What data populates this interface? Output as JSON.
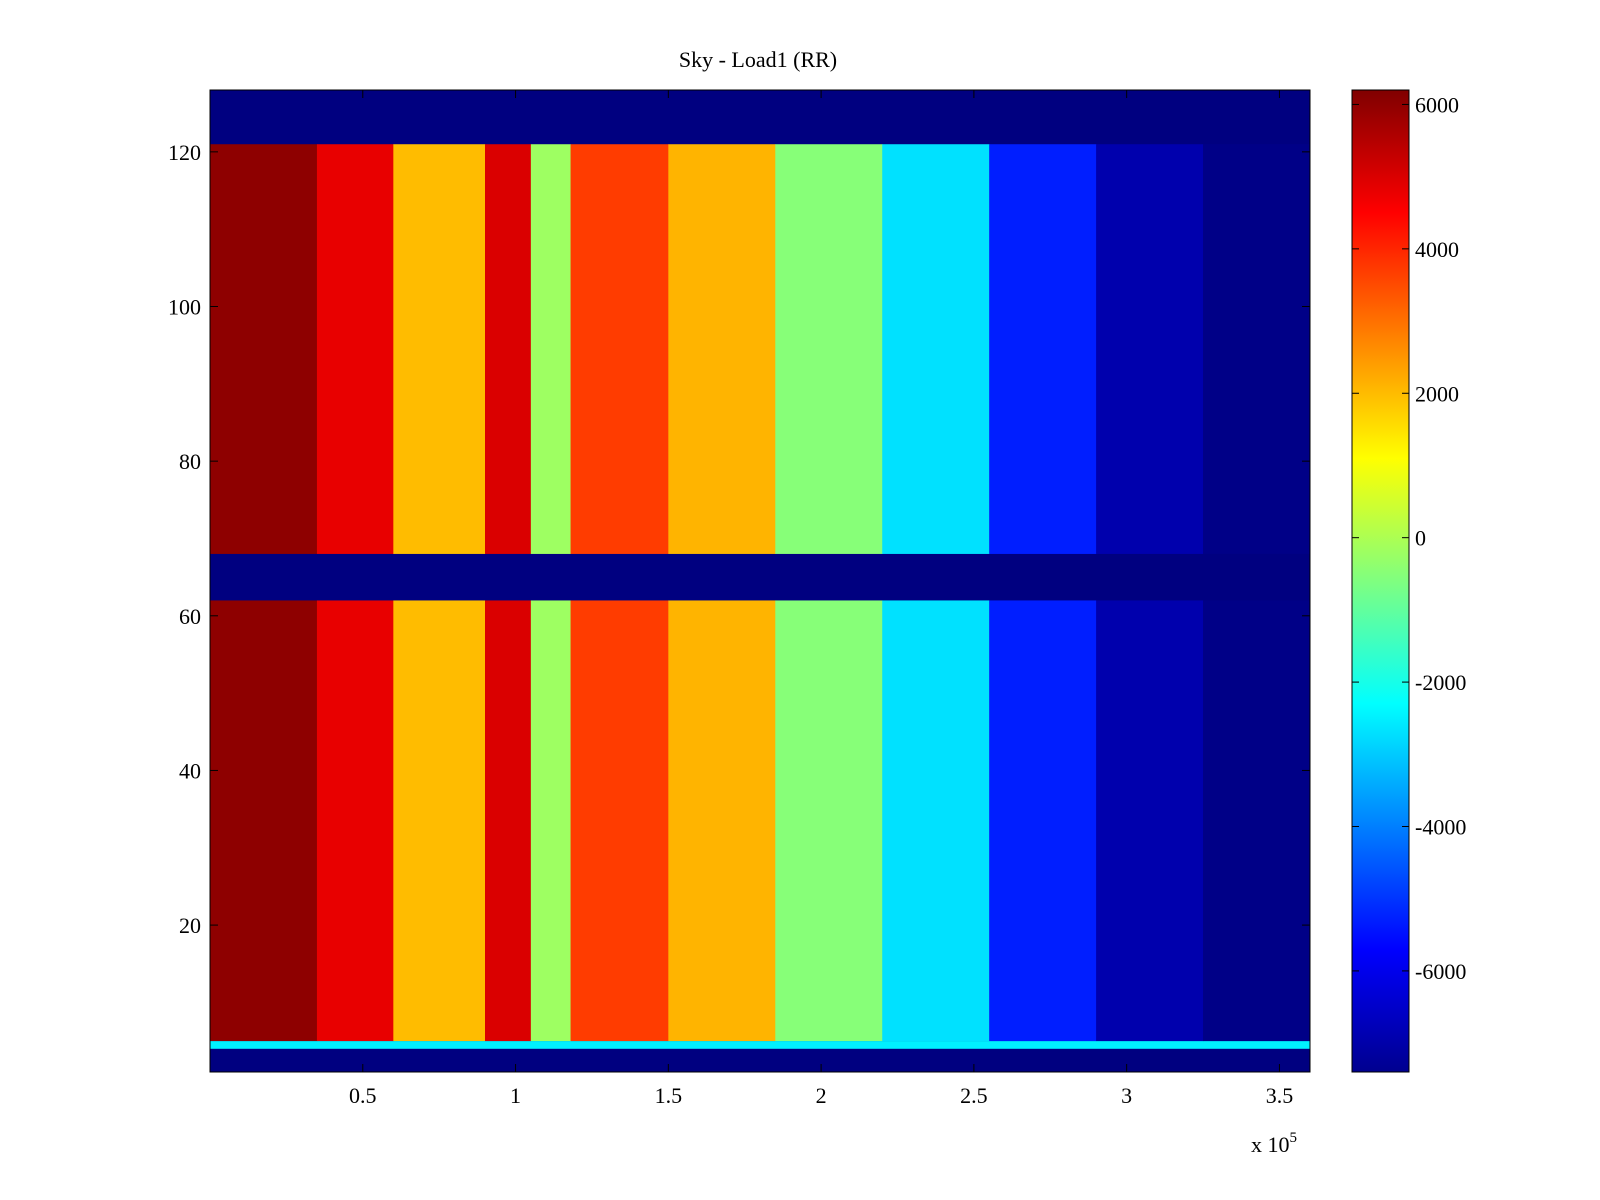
{
  "figure": {
    "title": "Sky - Load1 (RR)"
  },
  "chart_data": {
    "type": "heatmap",
    "title": "Sky - Load1 (RR)",
    "xlabel": "",
    "ylabel": "",
    "x_scale_label": "x 10",
    "x_scale_exponent": "5",
    "xlim": [
      0,
      3.6
    ],
    "ylim": [
      1,
      128
    ],
    "x_ticks": [
      0.5,
      1,
      1.5,
      2,
      2.5,
      3,
      3.5
    ],
    "x_tick_labels": [
      "0.5",
      "1",
      "1.5",
      "2",
      "2.5",
      "3",
      "3.5"
    ],
    "y_ticks": [
      20,
      40,
      60,
      80,
      100,
      120
    ],
    "y_tick_labels": [
      "20",
      "40",
      "60",
      "80",
      "100",
      "120"
    ],
    "grid": false,
    "colormap": "jet",
    "colorbar": {
      "range": [
        -7400,
        6200
      ],
      "ticks": [
        6000,
        4000,
        2000,
        0,
        -2000,
        -4000,
        -6000
      ],
      "tick_labels": [
        "6000",
        "4000",
        "2000",
        "0",
        "-2000",
        "-4000",
        "-6000"
      ]
    },
    "background_value": -7400,
    "column_profile": {
      "description": "approximate value per x-segment (x in units of 10^5) across active rows",
      "segments": [
        {
          "x": [
            0.0,
            0.35
          ],
          "value": 6000
        },
        {
          "x": [
            0.35,
            0.6
          ],
          "value": 4800
        },
        {
          "x": [
            0.6,
            0.9
          ],
          "value": 2000
        },
        {
          "x": [
            0.9,
            1.05
          ],
          "value": 5000
        },
        {
          "x": [
            1.05,
            1.18
          ],
          "value": -200
        },
        {
          "x": [
            1.18,
            1.5
          ],
          "value": 3700
        },
        {
          "x": [
            1.5,
            1.85
          ],
          "value": 2100
        },
        {
          "x": [
            1.85,
            2.2
          ],
          "value": -500
        },
        {
          "x": [
            2.2,
            2.55
          ],
          "value": -2700
        },
        {
          "x": [
            2.55,
            2.9
          ],
          "value": -5300
        },
        {
          "x": [
            2.9,
            3.25
          ],
          "value": -6800
        },
        {
          "x": [
            3.25,
            3.6
          ],
          "value": -7300
        }
      ]
    },
    "row_bands": [
      {
        "rows": [
          1,
          4
        ],
        "value": -7400
      },
      {
        "rows": [
          4,
          5
        ],
        "value": -2500
      },
      {
        "rows": [
          5,
          62
        ],
        "value": "profile"
      },
      {
        "rows": [
          62,
          68
        ],
        "value": -7400
      },
      {
        "rows": [
          68,
          121
        ],
        "value": "profile"
      },
      {
        "rows": [
          121,
          128
        ],
        "value": -7400
      }
    ]
  }
}
